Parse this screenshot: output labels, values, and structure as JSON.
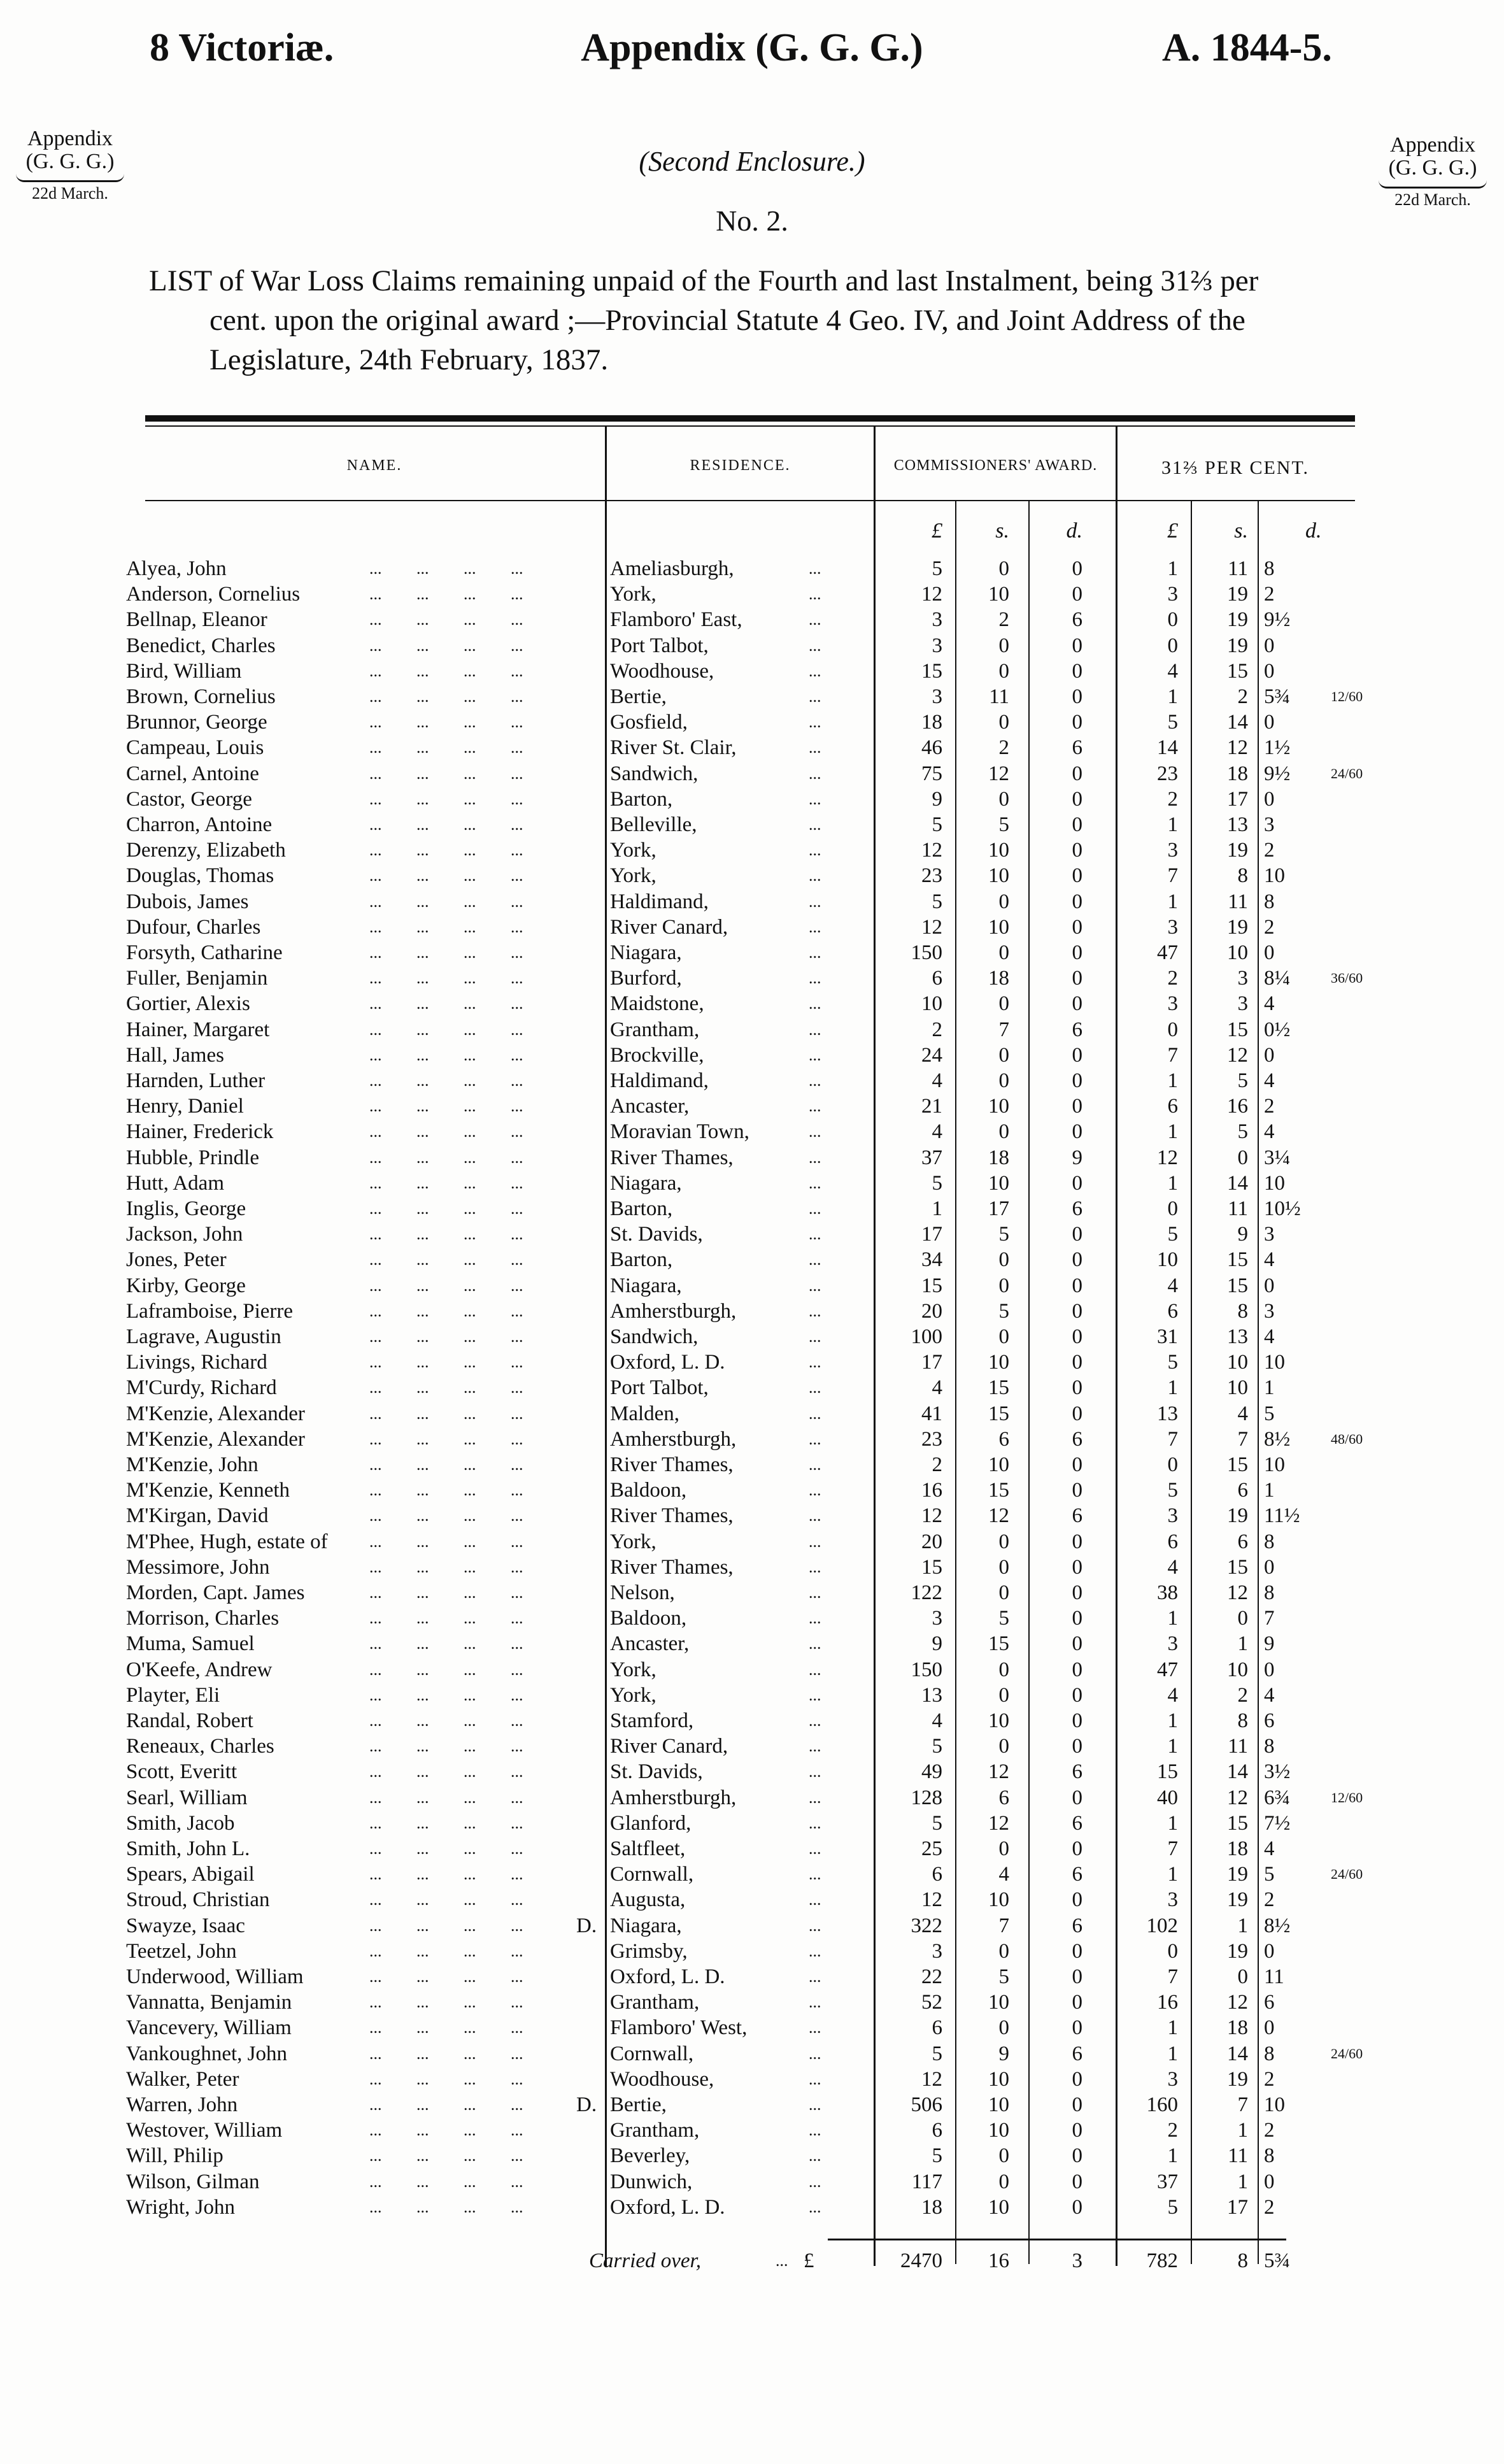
{
  "header": {
    "left": "8 Victoriæ.",
    "center": "Appendix (G. G. G.)",
    "right": "A. 1844-5."
  },
  "margin_note": {
    "line1": "Appendix",
    "line2": "(G. G. G.)",
    "date": "22d March."
  },
  "enclosure": "(Second Enclosure.)",
  "number": "No. 2.",
  "description": [
    "LIST of War Loss Claims remaining unpaid of the Fourth and last Instalment, being 31⅔ per",
    "cent. upon the original award ;—Provincial Statute 4 Geo. IV, and Joint Address of the",
    "Legislature, 24th February, 1837."
  ],
  "table": {
    "headers": {
      "name": "NAME.",
      "residence": "RESIDENCE.",
      "award": "COMMISSIONERS' AWARD.",
      "percent": "31⅔ PER CENT."
    },
    "units": [
      "£",
      "s.",
      "d.",
      "£",
      "s.",
      "d."
    ],
    "dots": "... ... ... ...",
    "rdots": "...",
    "rows": [
      {
        "name": "Alyea, John",
        "res": "Ameliasburgh,",
        "a": [
          "5",
          "0",
          "0"
        ],
        "b": [
          "1",
          "11",
          "8",
          ""
        ]
      },
      {
        "name": "Anderson, Cornelius",
        "res": "York,",
        "a": [
          "12",
          "10",
          "0"
        ],
        "b": [
          "3",
          "19",
          "2",
          ""
        ]
      },
      {
        "name": "Bellnap, Eleanor",
        "res": "Flamboro' East,",
        "a": [
          "3",
          "2",
          "6"
        ],
        "b": [
          "0",
          "19",
          "9½",
          ""
        ]
      },
      {
        "name": "Benedict, Charles",
        "res": "Port Talbot,",
        "a": [
          "3",
          "0",
          "0"
        ],
        "b": [
          "0",
          "19",
          "0",
          ""
        ]
      },
      {
        "name": "Bird, William",
        "res": "Woodhouse,",
        "a": [
          "15",
          "0",
          "0"
        ],
        "b": [
          "4",
          "15",
          "0",
          ""
        ]
      },
      {
        "name": "Brown, Cornelius",
        "res": "Bertie,",
        "a": [
          "3",
          "11",
          "0"
        ],
        "b": [
          "1",
          "2",
          "5¾",
          "12/60"
        ]
      },
      {
        "name": "Brunnor, George",
        "res": "Gosfield,",
        "a": [
          "18",
          "0",
          "0"
        ],
        "b": [
          "5",
          "14",
          "0",
          ""
        ]
      },
      {
        "name": "Campeau, Louis",
        "res": "River St. Clair,",
        "a": [
          "46",
          "2",
          "6"
        ],
        "b": [
          "14",
          "12",
          "1½",
          ""
        ]
      },
      {
        "name": "Carnel, Antoine",
        "res": "Sandwich,",
        "a": [
          "75",
          "12",
          "0"
        ],
        "b": [
          "23",
          "18",
          "9½",
          "24/60"
        ]
      },
      {
        "name": "Castor, George",
        "res": "Barton,",
        "a": [
          "9",
          "0",
          "0"
        ],
        "b": [
          "2",
          "17",
          "0",
          ""
        ]
      },
      {
        "name": "Charron, Antoine",
        "res": "Belleville,",
        "a": [
          "5",
          "5",
          "0"
        ],
        "b": [
          "1",
          "13",
          "3",
          ""
        ]
      },
      {
        "name": "Derenzy, Elizabeth",
        "res": "York,",
        "a": [
          "12",
          "10",
          "0"
        ],
        "b": [
          "3",
          "19",
          "2",
          ""
        ]
      },
      {
        "name": "Douglas, Thomas",
        "res": "York,",
        "a": [
          "23",
          "10",
          "0"
        ],
        "b": [
          "7",
          "8",
          "10",
          ""
        ]
      },
      {
        "name": "Dubois, James",
        "res": "Haldimand,",
        "a": [
          "5",
          "0",
          "0"
        ],
        "b": [
          "1",
          "11",
          "8",
          ""
        ]
      },
      {
        "name": "Dufour, Charles",
        "res": "River Canard,",
        "a": [
          "12",
          "10",
          "0"
        ],
        "b": [
          "3",
          "19",
          "2",
          ""
        ]
      },
      {
        "name": "Forsyth, Catharine",
        "res": "Niagara,",
        "a": [
          "150",
          "0",
          "0"
        ],
        "b": [
          "47",
          "10",
          "0",
          ""
        ]
      },
      {
        "name": "Fuller, Benjamin",
        "res": "Burford,",
        "a": [
          "6",
          "18",
          "0"
        ],
        "b": [
          "2",
          "3",
          "8¼",
          "36/60"
        ]
      },
      {
        "name": "Gortier, Alexis",
        "res": "Maidstone,",
        "a": [
          "10",
          "0",
          "0"
        ],
        "b": [
          "3",
          "3",
          "4",
          ""
        ]
      },
      {
        "name": "Hainer, Margaret",
        "res": "Grantham,",
        "a": [
          "2",
          "7",
          "6"
        ],
        "b": [
          "0",
          "15",
          "0½",
          ""
        ]
      },
      {
        "name": "Hall, James",
        "res": "Brockville,",
        "a": [
          "24",
          "0",
          "0"
        ],
        "b": [
          "7",
          "12",
          "0",
          ""
        ]
      },
      {
        "name": "Harnden, Luther",
        "res": "Haldimand,",
        "a": [
          "4",
          "0",
          "0"
        ],
        "b": [
          "1",
          "5",
          "4",
          ""
        ]
      },
      {
        "name": "Henry, Daniel",
        "res": "Ancaster,",
        "a": [
          "21",
          "10",
          "0"
        ],
        "b": [
          "6",
          "16",
          "2",
          ""
        ]
      },
      {
        "name": "Hainer, Frederick",
        "res": "Moravian Town,",
        "a": [
          "4",
          "0",
          "0"
        ],
        "b": [
          "1",
          "5",
          "4",
          ""
        ]
      },
      {
        "name": "Hubble, Prindle",
        "res": "River Thames,",
        "a": [
          "37",
          "18",
          "9"
        ],
        "b": [
          "12",
          "0",
          "3¼",
          ""
        ]
      },
      {
        "name": "Hutt, Adam",
        "res": "Niagara,",
        "a": [
          "5",
          "10",
          "0"
        ],
        "b": [
          "1",
          "14",
          "10",
          ""
        ]
      },
      {
        "name": "Inglis, George",
        "res": "Barton,",
        "a": [
          "1",
          "17",
          "6"
        ],
        "b": [
          "0",
          "11",
          "10½",
          ""
        ]
      },
      {
        "name": "Jackson, John",
        "res": "St. Davids,",
        "a": [
          "17",
          "5",
          "0"
        ],
        "b": [
          "5",
          "9",
          "3",
          ""
        ]
      },
      {
        "name": "Jones, Peter",
        "res": "Barton,",
        "a": [
          "34",
          "0",
          "0"
        ],
        "b": [
          "10",
          "15",
          "4",
          ""
        ]
      },
      {
        "name": "Kirby, George",
        "res": "Niagara,",
        "a": [
          "15",
          "0",
          "0"
        ],
        "b": [
          "4",
          "15",
          "0",
          ""
        ]
      },
      {
        "name": "Laframboise, Pierre",
        "res": "Amherstburgh,",
        "a": [
          "20",
          "5",
          "0"
        ],
        "b": [
          "6",
          "8",
          "3",
          ""
        ]
      },
      {
        "name": "Lagrave, Augustin",
        "res": "Sandwich,",
        "a": [
          "100",
          "0",
          "0"
        ],
        "b": [
          "31",
          "13",
          "4",
          ""
        ]
      },
      {
        "name": "Livings, Richard",
        "res": "Oxford, L. D.",
        "a": [
          "17",
          "10",
          "0"
        ],
        "b": [
          "5",
          "10",
          "10",
          ""
        ]
      },
      {
        "name": "M'Curdy, Richard",
        "res": "Port Talbot,",
        "a": [
          "4",
          "15",
          "0"
        ],
        "b": [
          "1",
          "10",
          "1",
          ""
        ]
      },
      {
        "name": "M'Kenzie, Alexander",
        "res": "Malden,",
        "a": [
          "41",
          "15",
          "0"
        ],
        "b": [
          "13",
          "4",
          "5",
          ""
        ]
      },
      {
        "name": "M'Kenzie, Alexander",
        "res": "Amherstburgh,",
        "a": [
          "23",
          "6",
          "6"
        ],
        "b": [
          "7",
          "7",
          "8½",
          "48/60"
        ]
      },
      {
        "name": "M'Kenzie, John",
        "res": "River Thames,",
        "a": [
          "2",
          "10",
          "0"
        ],
        "b": [
          "0",
          "15",
          "10",
          ""
        ]
      },
      {
        "name": "M'Kenzie, Kenneth",
        "res": "Baldoon,",
        "a": [
          "16",
          "15",
          "0"
        ],
        "b": [
          "5",
          "6",
          "1",
          ""
        ]
      },
      {
        "name": "M'Kirgan, David",
        "res": "River Thames,",
        "a": [
          "12",
          "12",
          "6"
        ],
        "b": [
          "3",
          "19",
          "11½",
          ""
        ]
      },
      {
        "name": "M'Phee, Hugh, estate of",
        "res": "York,",
        "a": [
          "20",
          "0",
          "0"
        ],
        "b": [
          "6",
          "6",
          "8",
          ""
        ]
      },
      {
        "name": "Messimore, John",
        "res": "River Thames,",
        "a": [
          "15",
          "0",
          "0"
        ],
        "b": [
          "4",
          "15",
          "0",
          ""
        ]
      },
      {
        "name": "Morden, Capt. James",
        "res": "Nelson,",
        "a": [
          "122",
          "0",
          "0"
        ],
        "b": [
          "38",
          "12",
          "8",
          ""
        ]
      },
      {
        "name": "Morrison, Charles",
        "res": "Baldoon,",
        "a": [
          "3",
          "5",
          "0"
        ],
        "b": [
          "1",
          "0",
          "7",
          ""
        ]
      },
      {
        "name": "Muma, Samuel",
        "res": "Ancaster,",
        "a": [
          "9",
          "15",
          "0"
        ],
        "b": [
          "3",
          "1",
          "9",
          ""
        ]
      },
      {
        "name": "O'Keefe, Andrew",
        "res": "York,",
        "a": [
          "150",
          "0",
          "0"
        ],
        "b": [
          "47",
          "10",
          "0",
          ""
        ]
      },
      {
        "name": "Playter, Eli",
        "res": "York,",
        "a": [
          "13",
          "0",
          "0"
        ],
        "b": [
          "4",
          "2",
          "4",
          ""
        ]
      },
      {
        "name": "Randal, Robert",
        "res": "Stamford,",
        "a": [
          "4",
          "10",
          "0"
        ],
        "b": [
          "1",
          "8",
          "6",
          ""
        ]
      },
      {
        "name": "Reneaux, Charles",
        "res": "River Canard,",
        "a": [
          "5",
          "0",
          "0"
        ],
        "b": [
          "1",
          "11",
          "8",
          ""
        ]
      },
      {
        "name": "Scott, Everitt",
        "res": "St. Davids,",
        "a": [
          "49",
          "12",
          "6"
        ],
        "b": [
          "15",
          "14",
          "3½",
          ""
        ]
      },
      {
        "name": "Searl, William",
        "res": "Amherstburgh,",
        "a": [
          "128",
          "6",
          "0"
        ],
        "b": [
          "40",
          "12",
          "6¾",
          "12/60"
        ]
      },
      {
        "name": "Smith, Jacob",
        "res": "Glanford,",
        "a": [
          "5",
          "12",
          "6"
        ],
        "b": [
          "1",
          "15",
          "7½",
          ""
        ]
      },
      {
        "name": "Smith, John L.",
        "res": "Saltfleet,",
        "a": [
          "25",
          "0",
          "0"
        ],
        "b": [
          "7",
          "18",
          "4",
          ""
        ]
      },
      {
        "name": "Spears, Abigail",
        "res": "Cornwall,",
        "a": [
          "6",
          "4",
          "6"
        ],
        "b": [
          "1",
          "19",
          "5",
          "24/60"
        ]
      },
      {
        "name": "Stroud, Christian",
        "res": "Augusta,",
        "a": [
          "12",
          "10",
          "0"
        ],
        "b": [
          "3",
          "19",
          "2",
          ""
        ]
      },
      {
        "name": "Swayze, Isaac",
        "mark": "D.",
        "res": "Niagara,",
        "a": [
          "322",
          "7",
          "6"
        ],
        "b": [
          "102",
          "1",
          "8½",
          ""
        ]
      },
      {
        "name": "Teetzel, John",
        "res": "Grimsby,",
        "a": [
          "3",
          "0",
          "0"
        ],
        "b": [
          "0",
          "19",
          "0",
          ""
        ]
      },
      {
        "name": "Underwood, William",
        "res": "Oxford, L. D.",
        "a": [
          "22",
          "5",
          "0"
        ],
        "b": [
          "7",
          "0",
          "11",
          ""
        ]
      },
      {
        "name": "Vannatta, Benjamin",
        "res": "Grantham,",
        "a": [
          "52",
          "10",
          "0"
        ],
        "b": [
          "16",
          "12",
          "6",
          ""
        ]
      },
      {
        "name": "Vancevery, William",
        "res": "Flamboro' West,",
        "a": [
          "6",
          "0",
          "0"
        ],
        "b": [
          "1",
          "18",
          "0",
          ""
        ]
      },
      {
        "name": "Vankoughnet, John",
        "res": "Cornwall,",
        "a": [
          "5",
          "9",
          "6"
        ],
        "b": [
          "1",
          "14",
          "8",
          "24/60"
        ]
      },
      {
        "name": "Walker, Peter",
        "res": "Woodhouse,",
        "a": [
          "12",
          "10",
          "0"
        ],
        "b": [
          "3",
          "19",
          "2",
          ""
        ]
      },
      {
        "name": "Warren, John",
        "mark": "D.",
        "res": "Bertie,",
        "a": [
          "506",
          "10",
          "0"
        ],
        "b": [
          "160",
          "7",
          "10",
          ""
        ]
      },
      {
        "name": "Westover, William",
        "res": "Grantham,",
        "a": [
          "6",
          "10",
          "0"
        ],
        "b": [
          "2",
          "1",
          "2",
          ""
        ]
      },
      {
        "name": "Will, Philip",
        "res": "Beverley,",
        "a": [
          "5",
          "0",
          "0"
        ],
        "b": [
          "1",
          "11",
          "8",
          ""
        ]
      },
      {
        "name": "Wilson, Gilman",
        "res": "Dunwich,",
        "a": [
          "117",
          "0",
          "0"
        ],
        "b": [
          "37",
          "1",
          "0",
          ""
        ]
      },
      {
        "name": "Wright, John",
        "res": "Oxford, L. D.",
        "a": [
          "18",
          "10",
          "0"
        ],
        "b": [
          "5",
          "17",
          "2",
          ""
        ]
      }
    ],
    "total": {
      "label": "Carried over,",
      "dots": "...",
      "currency": "£",
      "a": [
        "2470",
        "16",
        "3"
      ],
      "b": [
        "782",
        "8",
        "5¾"
      ]
    }
  }
}
